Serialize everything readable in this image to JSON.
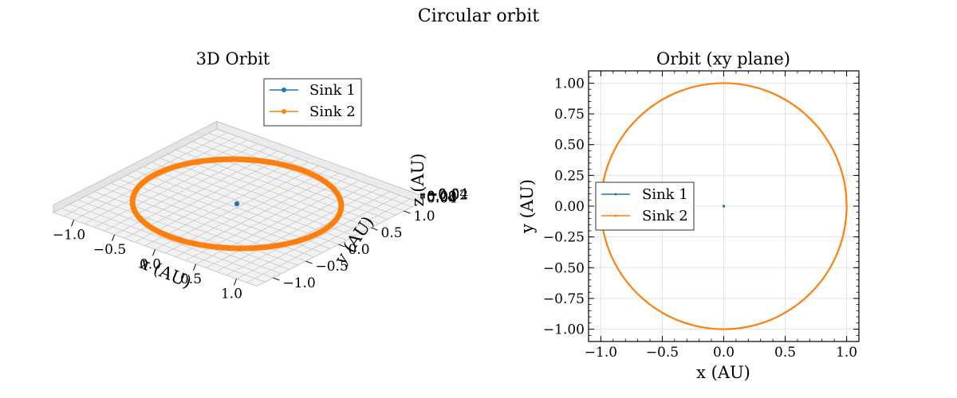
{
  "figure": {
    "title": "Circular orbit"
  },
  "chart_data": [
    {
      "type": "line",
      "projection": "3d",
      "title": "3D Orbit",
      "xlabel": "x (AU)",
      "ylabel": "y (AU)",
      "zlabel": "z (AU)",
      "xticks": [
        "−1.0",
        "−0.5",
        "0.0",
        "0.5",
        "1.0"
      ],
      "yticks": [
        "−1.0",
        "−0.5",
        "0.0",
        "0.5",
        "1.0"
      ],
      "zticks": [
        "−0.04",
        "−0.02",
        "0.00",
        "0.02",
        "0.04"
      ],
      "xlim": [
        -1.1,
        1.1
      ],
      "ylim": [
        -1.1,
        1.1
      ],
      "zlim": [
        -0.05,
        0.05
      ],
      "grid": true,
      "legend_position": "upper-center",
      "series": [
        {
          "name": "Sink 1",
          "color": "#1f77b4",
          "marker": "circle",
          "shape": "point",
          "x": [
            0.0
          ],
          "y": [
            0.0
          ],
          "z": [
            0.0
          ]
        },
        {
          "name": "Sink 2",
          "color": "#ff7f0e",
          "marker": "circle",
          "shape": "circle",
          "center": [
            0.0,
            0.0,
            0.0
          ],
          "radius": 1.0
        }
      ]
    },
    {
      "type": "line",
      "title": "Orbit (xy plane)",
      "xlabel": "x (AU)",
      "ylabel": "y (AU)",
      "xticks": [
        "−1.0",
        "−0.5",
        "0.0",
        "0.5",
        "1.0"
      ],
      "yticks": [
        "−1.00",
        "−0.75",
        "−0.50",
        "−0.25",
        "0.00",
        "0.25",
        "0.50",
        "0.75",
        "1.00"
      ],
      "xlim": [
        -1.1,
        1.1
      ],
      "ylim": [
        -1.1,
        1.1
      ],
      "grid": true,
      "legend_position": "center-left",
      "series": [
        {
          "name": "Sink 1",
          "color": "#1f77b4",
          "marker": "circle",
          "shape": "point",
          "x": [
            0.0
          ],
          "y": [
            0.0
          ]
        },
        {
          "name": "Sink 2",
          "color": "#ff7f0e",
          "marker": "circle",
          "shape": "circle",
          "center": [
            0.0,
            0.0
          ],
          "radius": 1.0
        }
      ]
    }
  ]
}
